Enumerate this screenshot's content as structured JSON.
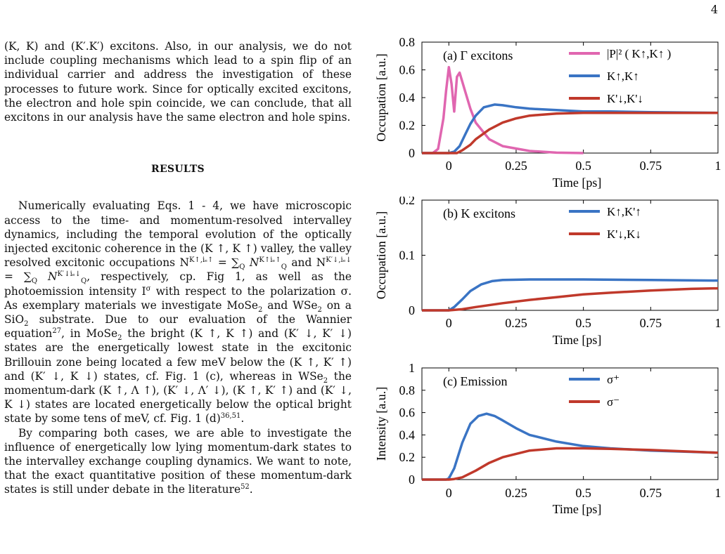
{
  "page_number": "4",
  "paragraph1": "(K, K) and (K′.K′) excitons. Also, in our analysis, we do not include coupling mechanisms which lead to a spin flip of an individual carrier and address the investigation of these processes to future work. Since for optically excited excitons, the electron and hole spin coincide, we can conclude, that all excitons in our analysis have the same electron and hole spins.",
  "section_heading": "RESULTS",
  "paragraph2": {
    "a": "Numerically evaluating Eqs. 1 - 4, we have microscopic access to the time- and momentum-resolved intervalley dynamics, including the temporal evolution of the optically injected excitonic coherence in the (K ↑, K ↑) valley, the valley resolved excitonic occupations N",
    "b": " and N",
    "c": ", respectively, cp. Fig 1, as well as the photoemission intensity I",
    "d": " with respect to the polarization σ. As exemplary materials we investigate MoSe",
    "e": " and WSe",
    "f": " on a SiO",
    "g": " substrate. Due to our evaluation of the Wannier equation",
    "h": ", in MoSe",
    "i": " the bright (K ↑, K ↑) and (K′ ↓, K′ ↓) states are the energetically lowest state in the excitonic Brillouin zone being located a few meV below the (K ↑, K′ ↑) and (K′ ↓, K ↓) states, cf. Fig. 1 (c), whereas in WSe",
    "j": " the momentum-dark (K ↑, Λ ↑), (K′ ↓, Λ′ ↓), (K ↑, K′ ↑) and (K′ ↓, K ↓) states are located energetically below the optical bright state by some tens of meV, cf. Fig. 1 (d)",
    "k": "."
  },
  "paragraph3": "By comparing both cases, we are able to investigate the influence of energetically low lying momentum-dark states to the intervalley exchange coupling dynamics. We want to note, that the exact quantitative position of these momentum-dark states is still under debate in the literature",
  "refs": {
    "wannier": "27",
    "fig1d": "36,51",
    "lit": "52"
  },
  "formula": {
    "N1_sup": "K↑,iₑ↑",
    "eq": " = ∑",
    "Q": "Q",
    "N": "N",
    "N1_Qsup": "K↑iₑ↑",
    "N2_sup": "K′↓,iₑ↓",
    "N2_Qsup": "K′↓iₑ↓",
    "sigma": "σ",
    "two": "2",
    "period": "."
  },
  "chart_data": [
    {
      "type": "line",
      "title": "(a) Γ excitons",
      "xlabel": "Time [ps]",
      "ylabel": "Occupation [a.u.]",
      "xlim": [
        -0.1,
        1.0
      ],
      "ylim": [
        0,
        0.8
      ],
      "xticks": [
        "0",
        "0.25",
        "0.5",
        "0.75",
        "1"
      ],
      "yticks": [
        "0",
        "0.2",
        "0.4",
        "0.6",
        "0.8"
      ],
      "legend_position": "top-right",
      "series": [
        {
          "name": "|P|² ( K↑,K↑ )",
          "color": "#e066b0",
          "x": [
            -0.1,
            -0.06,
            -0.04,
            -0.02,
            -0.01,
            0.0,
            0.01,
            0.02,
            0.03,
            0.04,
            0.06,
            0.08,
            0.1,
            0.15,
            0.2,
            0.3,
            0.4,
            0.5
          ],
          "y": [
            0,
            0.0,
            0.03,
            0.25,
            0.45,
            0.62,
            0.5,
            0.3,
            0.55,
            0.58,
            0.45,
            0.32,
            0.22,
            0.1,
            0.05,
            0.015,
            0.003,
            0
          ]
        },
        {
          "name": "K↑,K↑",
          "color": "#3a74c4",
          "x": [
            -0.1,
            0.0,
            0.02,
            0.04,
            0.06,
            0.08,
            0.1,
            0.13,
            0.17,
            0.2,
            0.25,
            0.3,
            0.4,
            0.5,
            0.6,
            0.75,
            1.0
          ],
          "y": [
            0,
            0,
            0.01,
            0.05,
            0.13,
            0.21,
            0.27,
            0.33,
            0.35,
            0.345,
            0.33,
            0.32,
            0.31,
            0.3,
            0.3,
            0.295,
            0.29
          ]
        },
        {
          "name": "K'↓,K'↓",
          "color": "#c0392b",
          "x": [
            -0.1,
            0.0,
            0.03,
            0.05,
            0.08,
            0.1,
            0.15,
            0.2,
            0.25,
            0.3,
            0.4,
            0.5,
            0.75,
            1.0
          ],
          "y": [
            0,
            0,
            0.0,
            0.02,
            0.06,
            0.1,
            0.17,
            0.22,
            0.25,
            0.27,
            0.285,
            0.29,
            0.29,
            0.29
          ]
        }
      ]
    },
    {
      "type": "line",
      "title": "(b) K excitons",
      "xlabel": "Time [ps]",
      "ylabel": "Occupation [a.u.]",
      "xlim": [
        -0.1,
        1.0
      ],
      "ylim": [
        0,
        0.2
      ],
      "xticks": [
        "0",
        "0.25",
        "0.5",
        "0.75",
        "1"
      ],
      "yticks": [
        "0",
        "0.1",
        "0.2"
      ],
      "legend_position": "top-right",
      "series": [
        {
          "name": "K↑,K'↑",
          "color": "#3a74c4",
          "x": [
            -0.1,
            0.0,
            0.02,
            0.05,
            0.08,
            0.12,
            0.16,
            0.2,
            0.3,
            0.5,
            0.75,
            1.0
          ],
          "y": [
            0,
            0,
            0.006,
            0.02,
            0.035,
            0.047,
            0.053,
            0.055,
            0.056,
            0.056,
            0.055,
            0.054
          ]
        },
        {
          "name": "K'↓,K↓",
          "color": "#c0392b",
          "x": [
            -0.1,
            0.0,
            0.05,
            0.1,
            0.2,
            0.3,
            0.4,
            0.5,
            0.6,
            0.75,
            0.9,
            1.0
          ],
          "y": [
            0,
            0,
            0.002,
            0.006,
            0.013,
            0.019,
            0.024,
            0.029,
            0.032,
            0.036,
            0.039,
            0.04
          ]
        }
      ]
    },
    {
      "type": "line",
      "title": "(c) Emission",
      "xlabel": "Time [ps]",
      "ylabel": "Intensity [a.u.]",
      "xlim": [
        -0.1,
        1.0
      ],
      "ylim": [
        0,
        1.0
      ],
      "xticks": [
        "0",
        "0.25",
        "0.5",
        "0.75",
        "1"
      ],
      "yticks": [
        "0",
        "0.2",
        "0.4",
        "0.6",
        "0.8",
        "1"
      ],
      "legend_position": "top-right",
      "series": [
        {
          "name": "σ⁺",
          "color": "#3a74c4",
          "x": [
            -0.1,
            -0.01,
            0.0,
            0.02,
            0.05,
            0.08,
            0.11,
            0.14,
            0.17,
            0.2,
            0.25,
            0.3,
            0.4,
            0.5,
            0.6,
            0.75,
            1.0
          ],
          "y": [
            0,
            0,
            0.01,
            0.1,
            0.33,
            0.5,
            0.57,
            0.59,
            0.57,
            0.53,
            0.46,
            0.4,
            0.34,
            0.3,
            0.28,
            0.26,
            0.24
          ]
        },
        {
          "name": "σ⁻",
          "color": "#c0392b",
          "x": [
            -0.1,
            0.0,
            0.02,
            0.05,
            0.1,
            0.15,
            0.2,
            0.3,
            0.4,
            0.5,
            0.6,
            0.75,
            1.0
          ],
          "y": [
            0,
            0,
            0.005,
            0.02,
            0.08,
            0.15,
            0.2,
            0.26,
            0.28,
            0.28,
            0.275,
            0.265,
            0.24
          ]
        }
      ]
    }
  ]
}
